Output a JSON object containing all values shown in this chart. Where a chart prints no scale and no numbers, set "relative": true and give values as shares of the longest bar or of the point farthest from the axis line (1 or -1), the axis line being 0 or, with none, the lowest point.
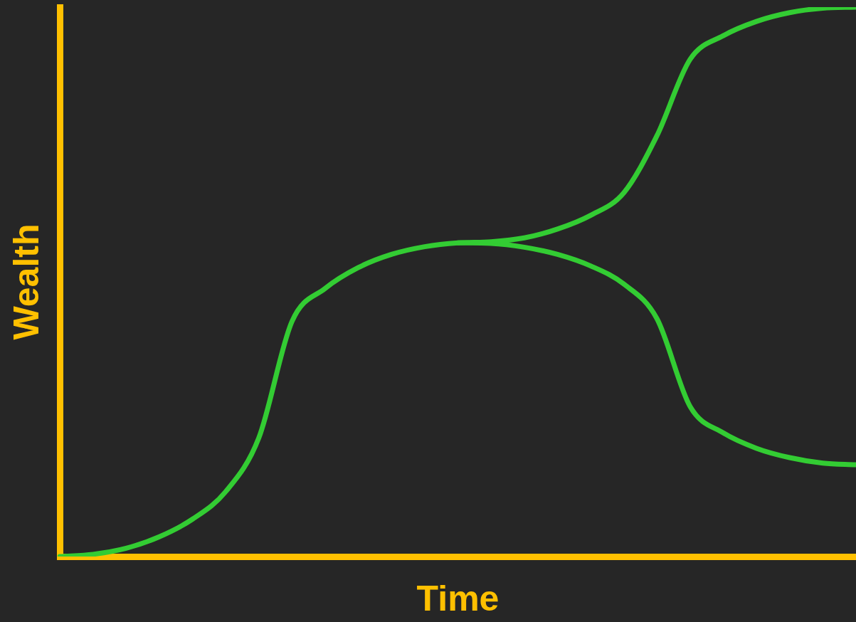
{
  "chart_data": {
    "type": "line",
    "xlabel": "Time",
    "ylabel": "Wealth",
    "relative": true,
    "grid": false,
    "legend": false,
    "marker": "none",
    "line_style": "solid",
    "categories": [
      null,
      null,
      null,
      null,
      null,
      null,
      null,
      null,
      null,
      null,
      null,
      null,
      null,
      null,
      null,
      null,
      null,
      null,
      null,
      null,
      null,
      null,
      null,
      null,
      null
    ],
    "series": [
      {
        "color": "#33cc33",
        "values": [
          0,
          0.004,
          0.015,
          0.036,
          0.068,
          0.118,
          0.216,
          0.428,
          0.488,
          0.526,
          0.55,
          0.564,
          0.571,
          0.573,
          0.58,
          0.596,
          0.621,
          0.662,
          0.766,
          0.905,
          0.948,
          0.974,
          0.99,
          0.998,
          1
        ]
      },
      {
        "color": "#33cc33",
        "values": [
          null,
          null,
          null,
          null,
          null,
          null,
          null,
          null,
          null,
          null,
          null,
          null,
          0.571,
          0.57,
          0.563,
          0.55,
          0.529,
          0.496,
          0.433,
          0.273,
          0.225,
          0.197,
          0.18,
          0.17,
          0.167
        ]
      }
    ]
  }
}
